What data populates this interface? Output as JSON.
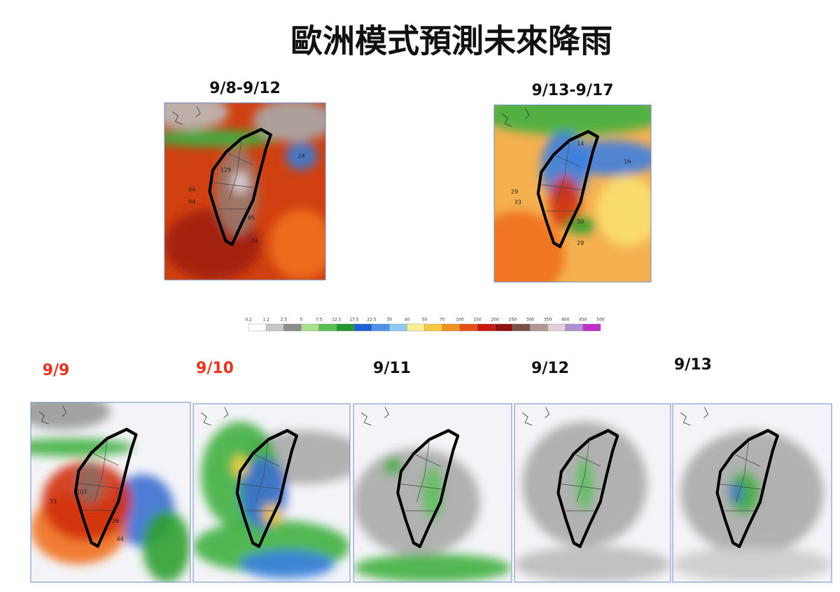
{
  "title": "歐洲模式預測未來降雨",
  "period_maps": [
    {
      "label": "9/8-9/12",
      "station_values": [
        "129",
        "84",
        "94",
        "85",
        "76",
        "24"
      ]
    },
    {
      "label": "9/13-9/17",
      "station_values": [
        "14",
        "16",
        "29",
        "33",
        "50",
        "29"
      ]
    }
  ],
  "colorbar": {
    "labels": [
      0.2,
      1.2,
      2.5,
      5,
      7.5,
      12.5,
      17.5,
      22.5,
      30,
      40,
      50,
      75,
      100,
      150,
      200,
      250,
      300,
      350,
      400,
      450,
      500
    ],
    "colors": [
      "#ffffff",
      "#c8c8c8",
      "#8c8c8c",
      "#a8e08c",
      "#58c050",
      "#209a30",
      "#2060d0",
      "#5090e8",
      "#90c8f0",
      "#f8f090",
      "#f8c840",
      "#f09020",
      "#e85018",
      "#c81810",
      "#901010",
      "#7a5048",
      "#b09890",
      "#e0d0d8",
      "#b090d0",
      "#c030c8"
    ]
  },
  "daily_maps": [
    {
      "label": "9/9",
      "color": "#e8321e",
      "station_values": [
        "107",
        "33",
        "36",
        "44"
      ]
    },
    {
      "label": "9/10",
      "color": "#e8321e"
    },
    {
      "label": "9/11",
      "color": "#111111"
    },
    {
      "label": "9/12",
      "color": "#111111"
    },
    {
      "label": "9/13",
      "color": "#111111"
    }
  ]
}
